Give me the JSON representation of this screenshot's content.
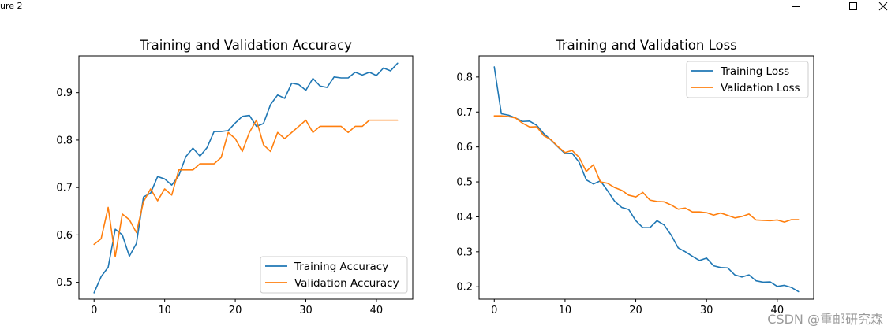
{
  "window": {
    "title_text": "ure 2",
    "minimize_label": "—",
    "maximize_label": "☐",
    "close_label": "✕"
  },
  "watermark": "CSDN @重邮研究森",
  "colors": {
    "series1": "#1f77b4",
    "series2": "#ff7f0e"
  },
  "chart_data": [
    {
      "type": "line",
      "title": "Training and Validation Accuracy",
      "xlabel": "",
      "ylabel": "",
      "xlim": [
        -2.15,
        45.15
      ],
      "ylim": [
        0.4645,
        0.9775
      ],
      "xticks": [
        0,
        10,
        20,
        30,
        40
      ],
      "yticks": [
        0.5,
        0.6,
        0.7,
        0.8,
        0.9
      ],
      "legend_position": "lower right",
      "series": [
        {
          "name": "Training Accuracy",
          "color": "#1f77b4",
          "values": [
            0.478,
            0.512,
            0.532,
            0.612,
            0.6,
            0.555,
            0.582,
            0.68,
            0.688,
            0.723,
            0.718,
            0.705,
            0.725,
            0.765,
            0.783,
            0.766,
            0.784,
            0.818,
            0.818,
            0.82,
            0.836,
            0.85,
            0.852,
            0.829,
            0.835,
            0.875,
            0.895,
            0.888,
            0.92,
            0.917,
            0.905,
            0.93,
            0.914,
            0.911,
            0.933,
            0.931,
            0.931,
            0.943,
            0.937,
            0.943,
            0.936,
            0.952,
            0.946,
            0.962
          ]
        },
        {
          "name": "Validation Accuracy",
          "color": "#ff7f0e",
          "values": [
            0.58,
            0.592,
            0.658,
            0.554,
            0.644,
            0.632,
            0.605,
            0.67,
            0.697,
            0.672,
            0.697,
            0.684,
            0.737,
            0.737,
            0.737,
            0.75,
            0.75,
            0.75,
            0.763,
            0.816,
            0.803,
            0.776,
            0.816,
            0.842,
            0.79,
            0.776,
            0.816,
            0.803,
            0.816,
            0.829,
            0.842,
            0.816,
            0.829,
            0.829,
            0.829,
            0.829,
            0.816,
            0.829,
            0.829,
            0.842,
            0.842,
            0.842,
            0.842,
            0.842
          ]
        }
      ]
    },
    {
      "type": "line",
      "title": "Training and Validation Loss",
      "xlabel": "",
      "ylabel": "",
      "xlim": [
        -2.15,
        45.15
      ],
      "ylim": [
        0.1645,
        0.8605
      ],
      "xticks": [
        0,
        10,
        20,
        30,
        40
      ],
      "yticks": [
        0.2,
        0.3,
        0.4,
        0.5,
        0.6,
        0.7,
        0.8
      ],
      "legend_position": "upper right",
      "series": [
        {
          "name": "Training Loss",
          "color": "#1f77b4",
          "values": [
            0.829,
            0.695,
            0.691,
            0.683,
            0.673,
            0.674,
            0.662,
            0.638,
            0.62,
            0.6,
            0.581,
            0.582,
            0.556,
            0.506,
            0.494,
            0.503,
            0.475,
            0.445,
            0.427,
            0.421,
            0.389,
            0.369,
            0.369,
            0.389,
            0.377,
            0.348,
            0.311,
            0.3,
            0.287,
            0.275,
            0.282,
            0.26,
            0.255,
            0.254,
            0.234,
            0.228,
            0.234,
            0.217,
            0.213,
            0.214,
            0.201,
            0.204,
            0.198,
            0.186
          ]
        },
        {
          "name": "Validation Loss",
          "color": "#ff7f0e",
          "values": [
            0.689,
            0.689,
            0.687,
            0.683,
            0.668,
            0.657,
            0.658,
            0.632,
            0.621,
            0.601,
            0.584,
            0.59,
            0.57,
            0.53,
            0.549,
            0.5,
            0.496,
            0.484,
            0.476,
            0.462,
            0.457,
            0.47,
            0.448,
            0.444,
            0.443,
            0.434,
            0.422,
            0.425,
            0.414,
            0.414,
            0.412,
            0.405,
            0.411,
            0.404,
            0.397,
            0.401,
            0.408,
            0.391,
            0.39,
            0.389,
            0.391,
            0.385,
            0.392,
            0.392
          ]
        }
      ]
    }
  ]
}
